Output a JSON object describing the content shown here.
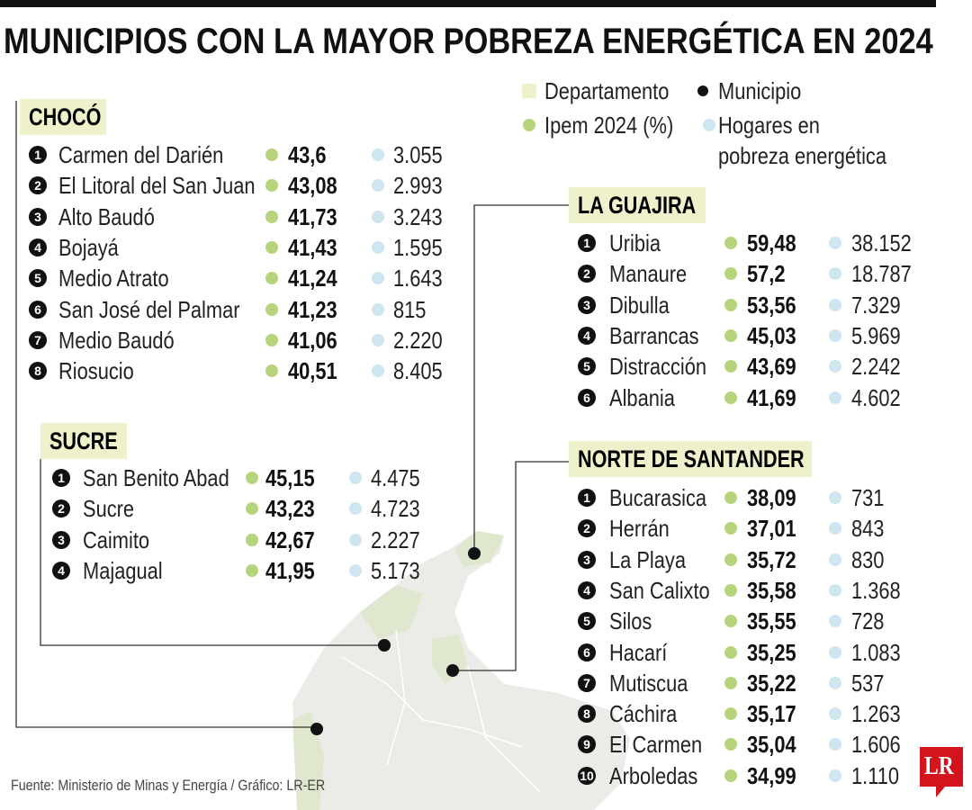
{
  "header": {
    "title": "MUNICIPIOS CON LA MAYOR POBREZA ENERGÉTICA EN 2024"
  },
  "legend": {
    "departamento": "Departamento",
    "municipio": "Municipio",
    "ipem": "Ipem 2024 (%)",
    "hogares": [
      "Hogares en",
      "pobreza energética"
    ]
  },
  "sections": [
    {
      "name": "CHOCÓ",
      "rows": [
        {
          "rank": "1",
          "municipio": "Carmen del Darién",
          "ipem": "43,6",
          "hogares": "3.055"
        },
        {
          "rank": "2",
          "municipio": "El Litoral del San Juan",
          "ipem": "43,08",
          "hogares": "2.993"
        },
        {
          "rank": "3",
          "municipio": "Alto Baudó",
          "ipem": "41,73",
          "hogares": "3.243"
        },
        {
          "rank": "4",
          "municipio": "Bojayá",
          "ipem": "41,43",
          "hogares": "1.595"
        },
        {
          "rank": "5",
          "municipio": "Medio Atrato",
          "ipem": "41,24",
          "hogares": "1.643"
        },
        {
          "rank": "6",
          "municipio": "San José del Palmar",
          "ipem": "41,23",
          "hogares": "815"
        },
        {
          "rank": "7",
          "municipio": "Medio Baudó",
          "ipem": "41,06",
          "hogares": "2.220"
        },
        {
          "rank": "8",
          "municipio": "Riosucio",
          "ipem": "40,51",
          "hogares": "8.405"
        }
      ]
    },
    {
      "name": "SUCRE",
      "rows": [
        {
          "rank": "1",
          "municipio": "San Benito Abad",
          "ipem": "45,15",
          "hogares": "4.475"
        },
        {
          "rank": "2",
          "municipio": "Sucre",
          "ipem": "43,23",
          "hogares": "4.723"
        },
        {
          "rank": "3",
          "municipio": "Caimito",
          "ipem": "42,67",
          "hogares": "2.227"
        },
        {
          "rank": "4",
          "municipio": "Majagual",
          "ipem": "41,95",
          "hogares": "5.173"
        }
      ]
    },
    {
      "name": "LA GUAJIRA",
      "rows": [
        {
          "rank": "1",
          "municipio": "Uribia",
          "ipem": "59,48",
          "hogares": "38.152"
        },
        {
          "rank": "2",
          "municipio": "Manaure",
          "ipem": "57,2",
          "hogares": "18.787"
        },
        {
          "rank": "3",
          "municipio": "Dibulla",
          "ipem": "53,56",
          "hogares": "7.329"
        },
        {
          "rank": "4",
          "municipio": "Barrancas",
          "ipem": "45,03",
          "hogares": "5.969"
        },
        {
          "rank": "5",
          "municipio": "Distracción",
          "ipem": "43,69",
          "hogares": "2.242"
        },
        {
          "rank": "6",
          "municipio": "Albania",
          "ipem": "41,69",
          "hogares": "4.602"
        }
      ]
    },
    {
      "name": "NORTE DE SANTANDER",
      "rows": [
        {
          "rank": "1",
          "municipio": "Bucarasica",
          "ipem": "38,09",
          "hogares": "731"
        },
        {
          "rank": "2",
          "municipio": "Herrán",
          "ipem": "37,01",
          "hogares": "843"
        },
        {
          "rank": "3",
          "municipio": "La Playa",
          "ipem": "35,72",
          "hogares": "830"
        },
        {
          "rank": "4",
          "municipio": "San Calixto",
          "ipem": "35,58",
          "hogares": "1.368"
        },
        {
          "rank": "5",
          "municipio": "Silos",
          "ipem": "35,55",
          "hogares": "728"
        },
        {
          "rank": "6",
          "municipio": "Hacarí",
          "ipem": "35,25",
          "hogares": "1.083"
        },
        {
          "rank": "7",
          "municipio": "Mutiscua",
          "ipem": "35,22",
          "hogares": "537"
        },
        {
          "rank": "8",
          "municipio": "Cáchira",
          "ipem": "35,17",
          "hogares": "1.263"
        },
        {
          "rank": "9",
          "municipio": "El Carmen",
          "ipem": "35,04",
          "hogares": "1.606"
        },
        {
          "rank": "10",
          "municipio": "Arboledas",
          "ipem": "34,99",
          "hogares": "1.110"
        }
      ]
    }
  ],
  "source": "Fuente: Ministerio de Minas y Energía / Gráfico: LR-ER",
  "logo": "LR"
}
